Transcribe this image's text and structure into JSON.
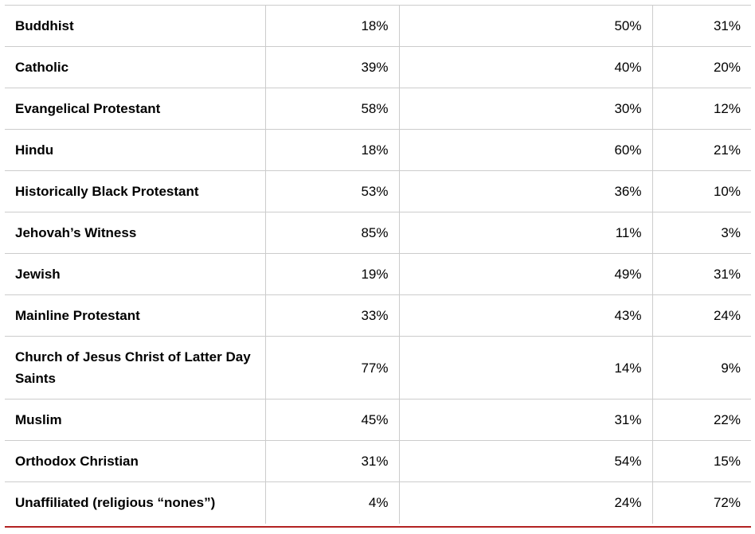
{
  "table": {
    "rows": [
      {
        "group": "Buddhist",
        "col1": "18%",
        "col2": "50%",
        "col3": "31%"
      },
      {
        "group": "Catholic",
        "col1": "39%",
        "col2": "40%",
        "col3": "20%"
      },
      {
        "group": "Evangelical Protestant",
        "col1": "58%",
        "col2": "30%",
        "col3": "12%"
      },
      {
        "group": "Hindu",
        "col1": "18%",
        "col2": "60%",
        "col3": "21%"
      },
      {
        "group": "Historically Black Protestant",
        "col1": "53%",
        "col2": "36%",
        "col3": "10%"
      },
      {
        "group": "Jehovah’s Witness",
        "col1": "85%",
        "col2": "11%",
        "col3": "3%"
      },
      {
        "group": "Jewish",
        "col1": "19%",
        "col2": "49%",
        "col3": "31%"
      },
      {
        "group": "Mainline Protestant",
        "col1": "33%",
        "col2": "43%",
        "col3": "24%"
      },
      {
        "group": "Church of Jesus Christ of Latter Day Saints",
        "col1": "77%",
        "col2": "14%",
        "col3": "9%"
      },
      {
        "group": "Muslim",
        "col1": "45%",
        "col2": "31%",
        "col3": "22%"
      },
      {
        "group": "Orthodox Christian",
        "col1": "31%",
        "col2": "54%",
        "col3": "15%"
      },
      {
        "group": "Unaffiliated (religious “nones”)",
        "col1": "4%",
        "col2": "24%",
        "col3": "72%"
      }
    ]
  },
  "colors": {
    "gridline": "#cccccc",
    "bottom_rule": "#b22222"
  }
}
